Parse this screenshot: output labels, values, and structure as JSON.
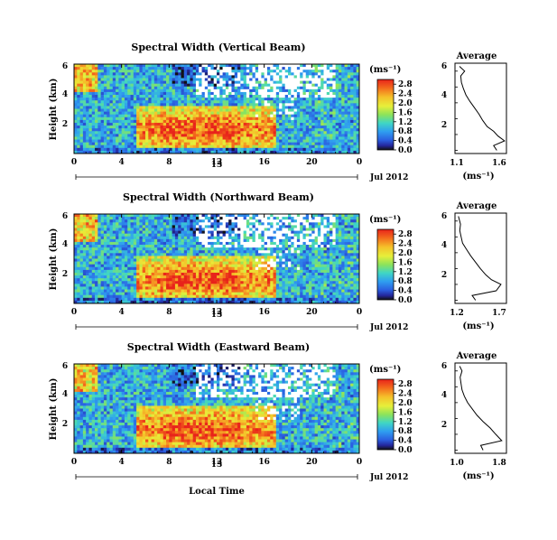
{
  "chart_data": [
    {
      "type": "heatmap",
      "title": "Spectral Width (Vertical Beam)",
      "ylabel": "Height (km)",
      "y_ticks": [
        "6",
        "4",
        "2"
      ],
      "x_ticks": [
        "0",
        "4",
        "8",
        "12",
        "16",
        "20",
        "0"
      ],
      "date_day": "13",
      "date_label": "Jul 2012",
      "colorbar": {
        "unit": "(ms⁻¹)",
        "ticks": [
          "2.8",
          "2.4",
          "2.0",
          "1.6",
          "1.2",
          "0.8",
          "0.4",
          "0.0"
        ],
        "range": [
          0.0,
          3.0
        ]
      },
      "average": {
        "title": "Average",
        "xlabel": "(ms⁻¹)",
        "x_ticks": [
          "1.1",
          "1.6"
        ],
        "y_ticks": [
          "6",
          "4",
          "2"
        ],
        "xlim": [
          0.95,
          1.75
        ],
        "ylim": [
          0.3,
          6.0
        ],
        "profile": [
          [
            1.6,
            0.5
          ],
          [
            1.55,
            0.8
          ],
          [
            1.72,
            1.1
          ],
          [
            1.62,
            1.4
          ],
          [
            1.55,
            1.7
          ],
          [
            1.45,
            2.0
          ],
          [
            1.38,
            2.4
          ],
          [
            1.32,
            2.8
          ],
          [
            1.25,
            3.2
          ],
          [
            1.18,
            3.6
          ],
          [
            1.12,
            4.0
          ],
          [
            1.08,
            4.4
          ],
          [
            1.05,
            4.8
          ],
          [
            1.04,
            5.2
          ],
          [
            1.1,
            5.5
          ],
          [
            1.02,
            5.8
          ]
        ]
      }
    },
    {
      "type": "heatmap",
      "title": "Spectral Width (Northward Beam)",
      "ylabel": "Height (km)",
      "y_ticks": [
        "6",
        "4",
        "2"
      ],
      "x_ticks": [
        "0",
        "4",
        "8",
        "12",
        "16",
        "20",
        "0"
      ],
      "date_day": "13",
      "date_label": "Jul 2012",
      "colorbar": {
        "unit": "(ms⁻¹)",
        "ticks": [
          "2.8",
          "2.4",
          "2.0",
          "1.6",
          "1.2",
          "0.8",
          "0.4",
          "0.0"
        ],
        "range": [
          0.0,
          3.0
        ]
      },
      "average": {
        "title": "Average",
        "xlabel": "(ms⁻¹)",
        "x_ticks": [
          "1.2",
          "1.7"
        ],
        "y_ticks": [
          "6",
          "4",
          "2"
        ],
        "xlim": [
          1.05,
          1.8
        ],
        "ylim": [
          0.3,
          6.0
        ],
        "profile": [
          [
            1.35,
            0.5
          ],
          [
            1.3,
            0.8
          ],
          [
            1.65,
            1.1
          ],
          [
            1.72,
            1.5
          ],
          [
            1.58,
            1.8
          ],
          [
            1.5,
            2.1
          ],
          [
            1.42,
            2.5
          ],
          [
            1.35,
            2.9
          ],
          [
            1.28,
            3.3
          ],
          [
            1.22,
            3.7
          ],
          [
            1.16,
            4.1
          ],
          [
            1.14,
            4.5
          ],
          [
            1.12,
            4.9
          ],
          [
            1.13,
            5.3
          ],
          [
            1.1,
            5.8
          ]
        ]
      }
    },
    {
      "type": "heatmap",
      "title": "Spectral Width (Eastward Beam)",
      "ylabel": "Height (km)",
      "y_ticks": [
        "6",
        "4",
        "2"
      ],
      "x_ticks": [
        "0",
        "4",
        "8",
        "12",
        "16",
        "20",
        "0"
      ],
      "date_day": "13",
      "date_label": "Jul 2012",
      "xlabel": "Local Time",
      "colorbar": {
        "unit": "(ms⁻¹)",
        "ticks": [
          "2.8",
          "2.4",
          "2.0",
          "1.6",
          "1.2",
          "0.8",
          "0.4",
          "0.0"
        ],
        "range": [
          0.0,
          3.0
        ]
      },
      "average": {
        "title": "Average",
        "xlabel": "(ms⁻¹)",
        "x_ticks": [
          "1.0",
          "1.8"
        ],
        "y_ticks": [
          "6",
          "4",
          "2"
        ],
        "xlim": [
          0.85,
          1.95
        ],
        "ylim": [
          0.3,
          6.0
        ],
        "profile": [
          [
            1.45,
            0.5
          ],
          [
            1.4,
            0.8
          ],
          [
            1.85,
            1.1
          ],
          [
            1.72,
            1.5
          ],
          [
            1.6,
            1.9
          ],
          [
            1.45,
            2.3
          ],
          [
            1.32,
            2.7
          ],
          [
            1.22,
            3.1
          ],
          [
            1.12,
            3.5
          ],
          [
            1.05,
            3.9
          ],
          [
            1.0,
            4.3
          ],
          [
            0.98,
            4.7
          ],
          [
            0.96,
            5.1
          ],
          [
            1.0,
            5.5
          ],
          [
            0.95,
            5.8
          ]
        ]
      }
    }
  ]
}
